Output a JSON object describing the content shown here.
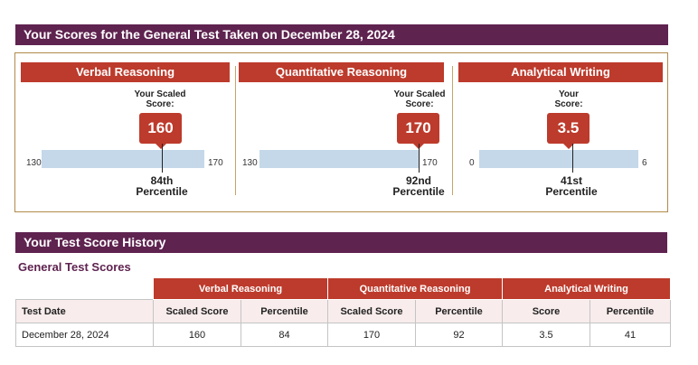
{
  "scores_header": "Your Scores for the General Test Taken on December 28, 2024",
  "panels": [
    {
      "title": "Verbal Reasoning",
      "scaled_label": "Your Scaled Score:",
      "score": "160",
      "min": "130",
      "max": "170",
      "position": 0.75,
      "percentile_rank": "84th",
      "percentile_word": "Percentile"
    },
    {
      "title": "Quantitative Reasoning",
      "scaled_label": "Your Scaled Score:",
      "score": "170",
      "min": "130",
      "max": "170",
      "position": 1.0,
      "percentile_rank": "92nd",
      "percentile_word": "Percentile"
    },
    {
      "title": "Analytical Writing",
      "scaled_label": "Your Score:",
      "score": "3.5",
      "min": "0",
      "max": "6",
      "position": 0.583,
      "percentile_rank": "41st",
      "percentile_word": "Percentile"
    }
  ],
  "history": {
    "header": "Your Test Score History",
    "subheading": "General Test Scores",
    "groups": [
      "Verbal Reasoning",
      "Quantitative Reasoning",
      "Analytical Writing"
    ],
    "columns": [
      "Test Date",
      "Scaled Score",
      "Percentile",
      "Scaled Score",
      "Percentile",
      "Score",
      "Percentile"
    ],
    "rows": [
      [
        "December 28, 2024",
        "160",
        "84",
        "170",
        "92",
        "3.5",
        "41"
      ]
    ]
  },
  "colors": {
    "header_bg": "#5f2350",
    "accent": "#bd3b2c",
    "track": "#c5d8ea"
  }
}
